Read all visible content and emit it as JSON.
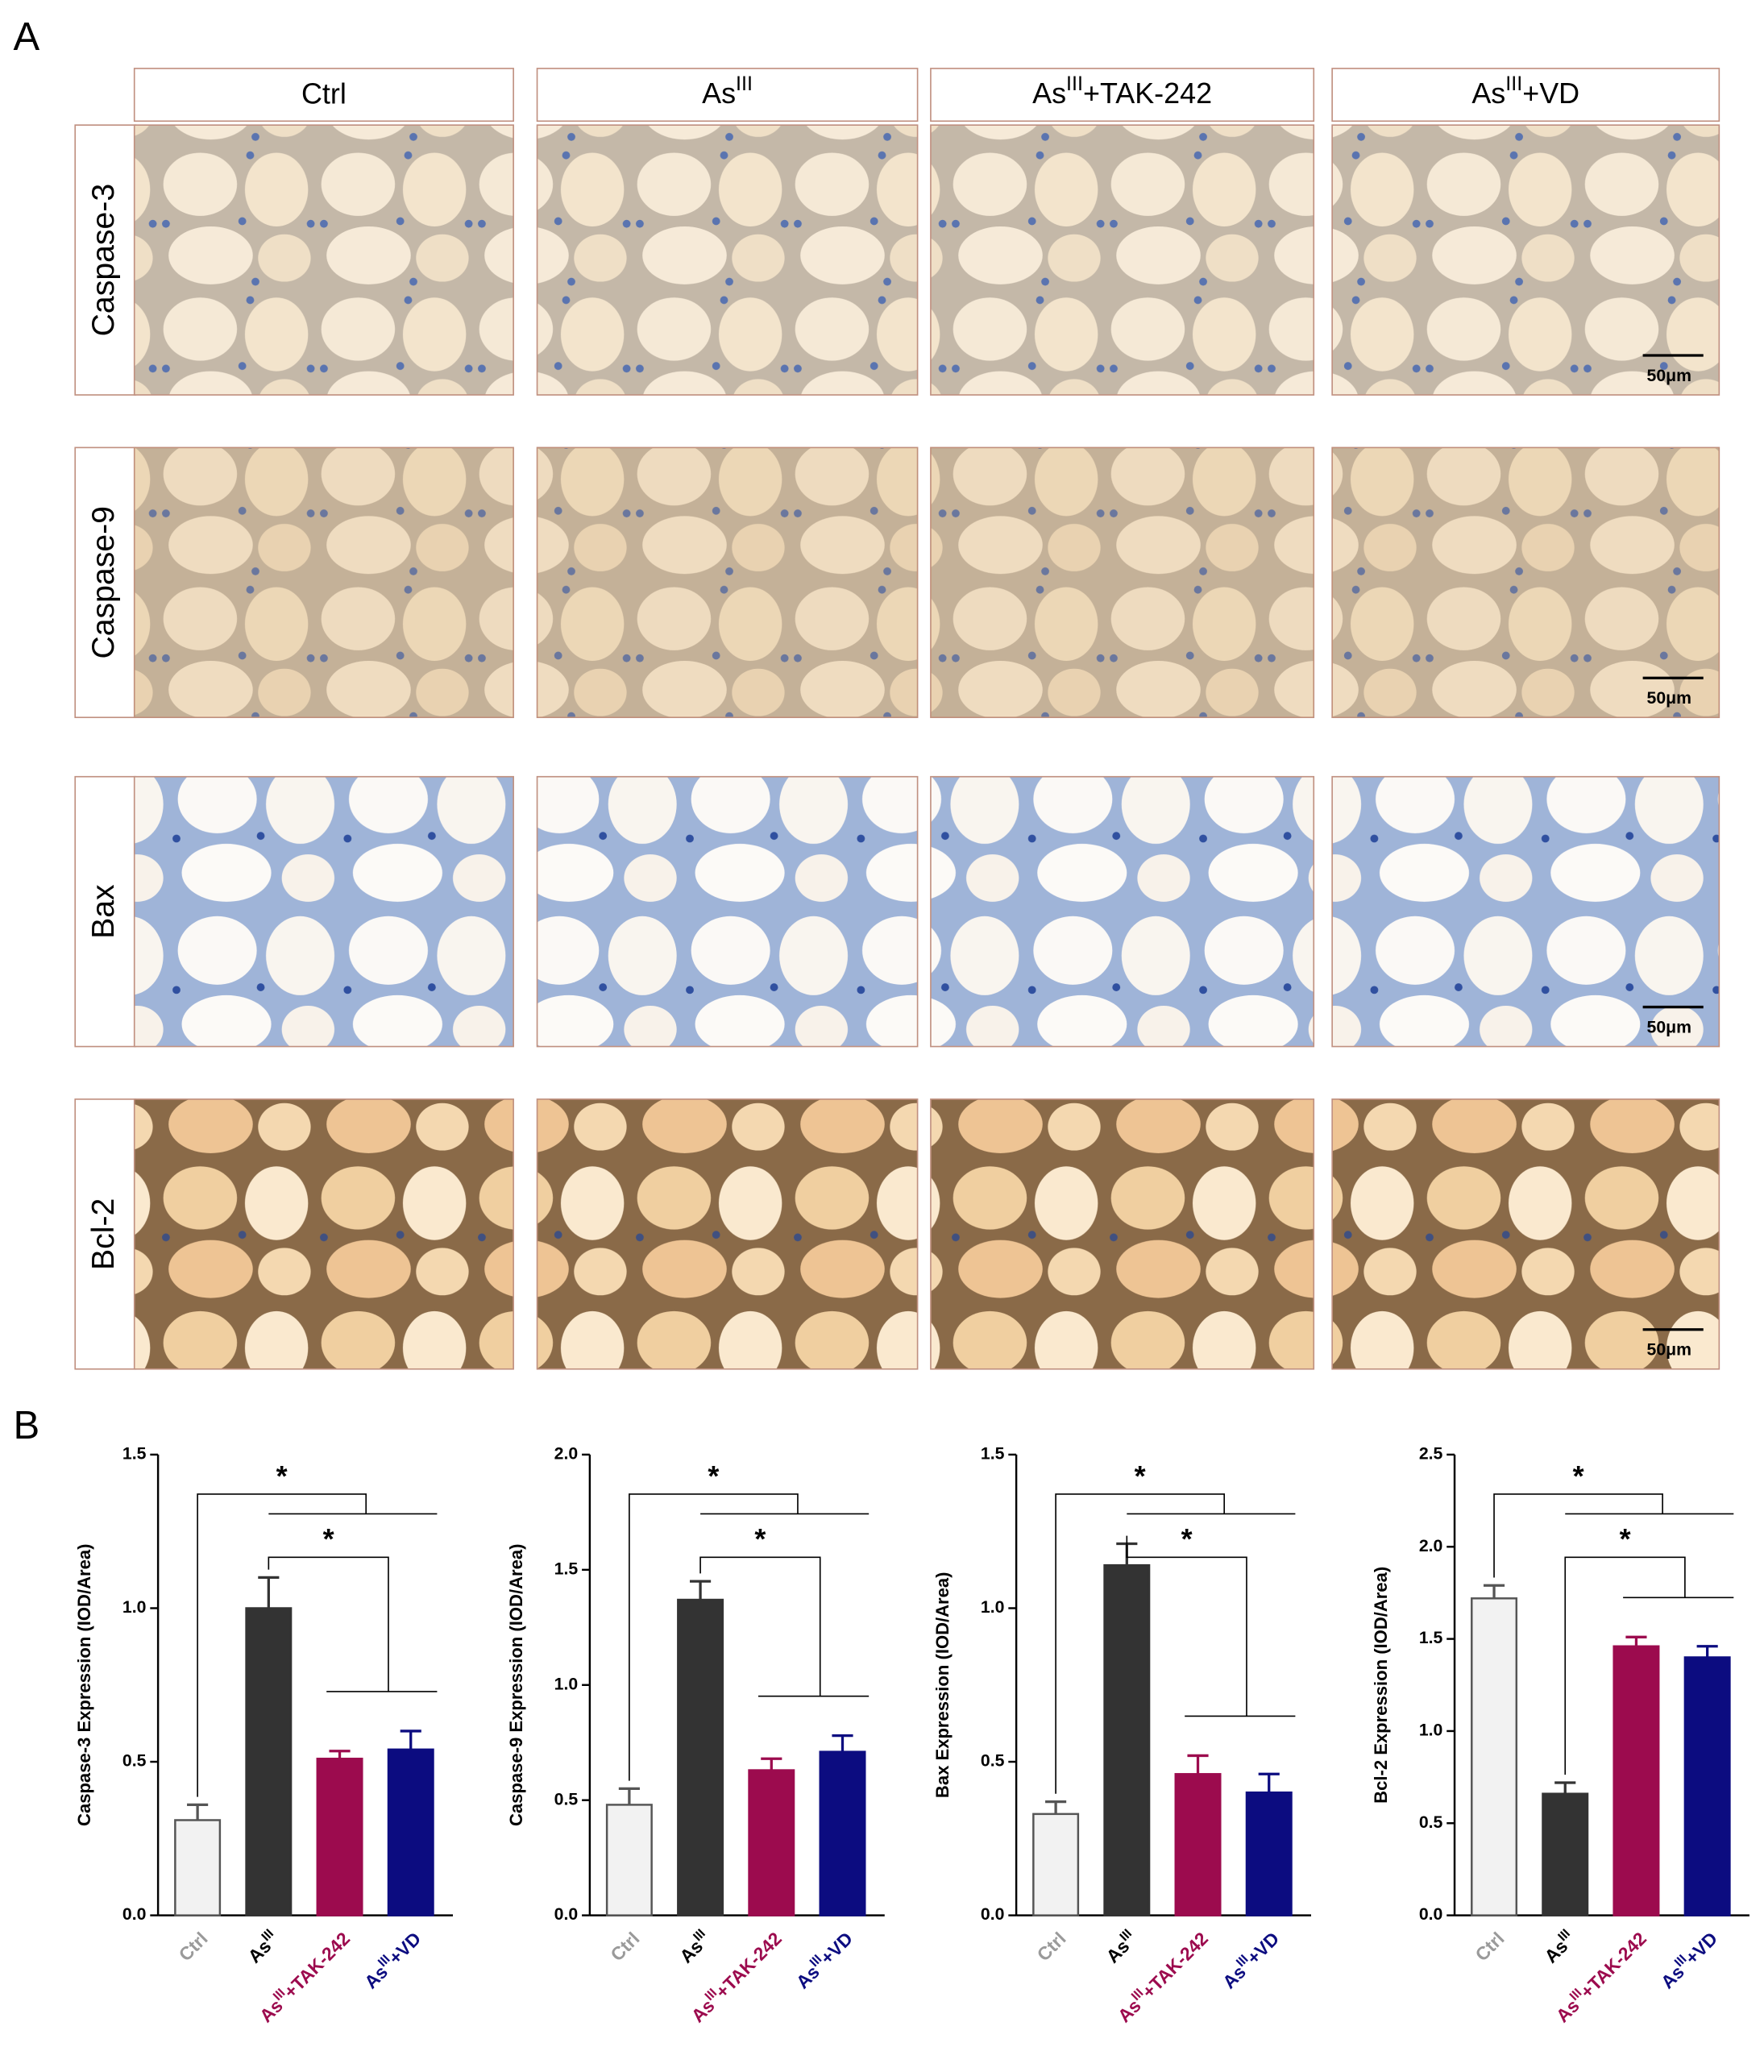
{
  "panel_a": {
    "label": "A",
    "columns": [
      "Ctrl",
      "AsIII",
      "AsIII+TAK-242",
      "AsIII+VD"
    ],
    "rows": [
      "Caspase-3",
      "Caspase-9",
      "Bax",
      "Bcl-2"
    ],
    "scale_bar": "50μm"
  },
  "panel_b_label": "B",
  "chart_data": [
    {
      "type": "bar",
      "y_label": "Caspase-3 Expression (IOD/Area)",
      "categories": [
        "Ctrl",
        "AsIII",
        "AsIII+TAK-242",
        "AsIII+VD"
      ],
      "values": [
        0.31,
        1.0,
        0.51,
        0.54
      ],
      "errors": [
        0.05,
        0.1,
        0.025,
        0.06
      ],
      "colors": [
        "#f2f2f2",
        "#333333",
        "#9c0b4e",
        "#0c0c80"
      ],
      "label_colors": [
        "#9a9a9a",
        "#000000",
        "#9c0b4e",
        "#0c0c80"
      ],
      "ylim": [
        0,
        1.5
      ],
      "yticks": [
        {
          "value": 0,
          "label": "0.0"
        },
        0.5,
        {
          "value": 1,
          "label": "1.0"
        },
        1.5
      ],
      "annotations": [
        "*",
        "*"
      ]
    },
    {
      "type": "bar",
      "y_label": "Caspase-9 Expression (IOD/Area)",
      "categories": [
        "Ctrl",
        "AsIII",
        "AsIII+TAK-242",
        "AsIII+VD"
      ],
      "values": [
        0.48,
        1.37,
        0.63,
        0.71
      ],
      "errors": [
        0.07,
        0.08,
        0.05,
        0.07
      ],
      "colors": [
        "#f2f2f2",
        "#333333",
        "#9c0b4e",
        "#0c0c80"
      ],
      "label_colors": [
        "#9a9a9a",
        "#000000",
        "#9c0b4e",
        "#0c0c80"
      ],
      "ylim": [
        0,
        2
      ],
      "yticks": [
        {
          "value": 0,
          "label": "0.0"
        },
        0.5,
        {
          "value": 1,
          "label": "1.0"
        },
        1.5,
        {
          "value": 2,
          "label": "2.0"
        }
      ],
      "annotations": [
        "*",
        "*"
      ]
    },
    {
      "type": "bar",
      "y_label": "Bax Expression (IOD/Area)",
      "categories": [
        "Ctrl",
        "AsIII",
        "AsIII+TAK-242",
        "AsIII+VD"
      ],
      "values": [
        0.33,
        1.14,
        0.46,
        0.4
      ],
      "errors": [
        0.04,
        0.07,
        0.06,
        0.06
      ],
      "colors": [
        "#f2f2f2",
        "#333333",
        "#9c0b4e",
        "#0c0c80"
      ],
      "label_colors": [
        "#9a9a9a",
        "#000000",
        "#9c0b4e",
        "#0c0c80"
      ],
      "ylim": [
        0,
        1.5
      ],
      "yticks": [
        {
          "value": 0,
          "label": "0.0"
        },
        0.5,
        {
          "value": 1,
          "label": "1.0"
        },
        1.5
      ],
      "annotations": [
        "*",
        "*"
      ]
    },
    {
      "type": "bar",
      "y_label": "Bcl-2 Expression (IOD/Area)",
      "categories": [
        "Ctrl",
        "AsIII",
        "AsIII+TAK-242",
        "AsIII+VD"
      ],
      "values": [
        1.72,
        0.66,
        1.46,
        1.4
      ],
      "errors": [
        0.07,
        0.06,
        0.05,
        0.06
      ],
      "colors": [
        "#f2f2f2",
        "#333333",
        "#9c0b4e",
        "#0c0c80"
      ],
      "label_colors": [
        "#9a9a9a",
        "#000000",
        "#9c0b4e",
        "#0c0c80"
      ],
      "ylim": [
        0,
        2.5
      ],
      "yticks": [
        {
          "value": 0,
          "label": "0.0"
        },
        0.5,
        {
          "value": 1,
          "label": "1.0"
        },
        1.5,
        {
          "value": 2,
          "label": "2.0"
        },
        2.5
      ],
      "annotations": [
        "*",
        "*"
      ]
    }
  ]
}
